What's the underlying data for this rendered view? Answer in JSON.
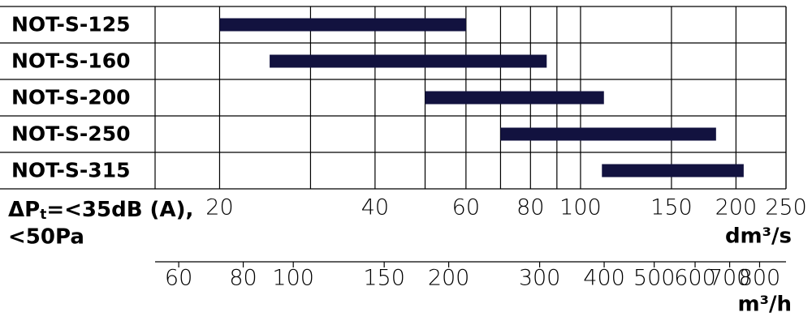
{
  "chart_data": {
    "type": "range-bar",
    "categories": [
      "NOT-S-125",
      "NOT-S-160",
      "NOT-S-200",
      "NOT-S-250",
      "NOT-S-315"
    ],
    "ranges": [
      [
        20,
        60
      ],
      [
        25,
        86
      ],
      [
        50,
        111
      ],
      [
        70,
        183
      ],
      [
        110,
        207
      ]
    ],
    "color": "#12123f",
    "log_scale": true,
    "xlim": [
      15,
      250
    ],
    "xticks": [
      20,
      40,
      60,
      80,
      100,
      150,
      200,
      250
    ],
    "xminor": [
      30,
      50,
      70,
      90
    ],
    "x_title": "dm³/s",
    "x2lim": [
      54,
      900
    ],
    "x2ticks": [
      60,
      80,
      100,
      150,
      200,
      300,
      400,
      500,
      600,
      700,
      800
    ],
    "x2_title": "m³/h",
    "note": {
      "symbol": "ΔP",
      "subscript": "t",
      "text": "=<35dB (A),"
    },
    "note2": "<50Pa",
    "grid": true
  }
}
